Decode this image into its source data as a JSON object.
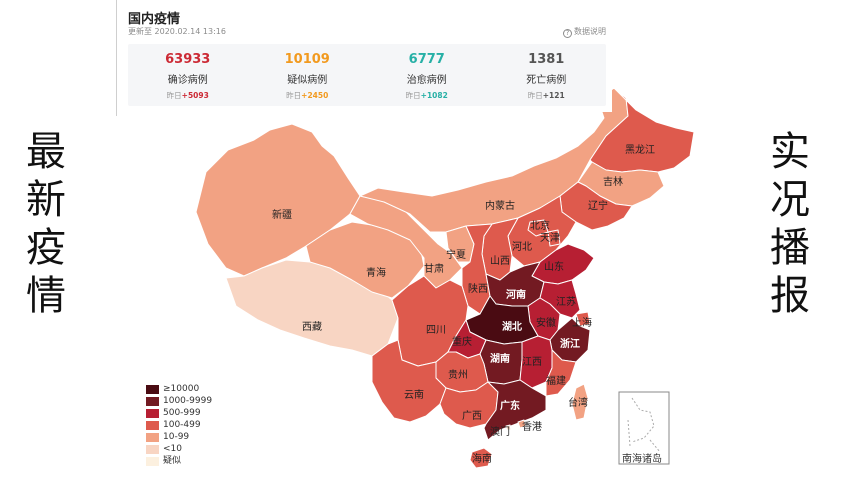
{
  "side_left": [
    "最",
    "新",
    "疫",
    "情"
  ],
  "side_right": [
    "实",
    "况",
    "播",
    "报"
  ],
  "panel": {
    "title": "国内疫情",
    "updated": "更新至 2020.02.14 13:16",
    "note": "数据说明",
    "help_icon": "question-circle-icon"
  },
  "stats": [
    {
      "value": "63933",
      "label": "确诊病例",
      "delta_prefix": "昨日",
      "delta": "+5093",
      "color": "#cc2a35"
    },
    {
      "value": "10109",
      "label": "疑似病例",
      "delta_prefix": "昨日",
      "delta": "+2450",
      "color": "#f29a1f"
    },
    {
      "value": "6777",
      "label": "治愈病例",
      "delta_prefix": "昨日",
      "delta": "+1082",
      "color": "#27b0a6"
    },
    {
      "value": "1381",
      "label": "死亡病例",
      "delta_prefix": "昨日",
      "delta": "+121",
      "color": "#555555"
    }
  ],
  "legend": [
    {
      "label": "≥10000",
      "color": "#4a0b12"
    },
    {
      "label": "1000-9999",
      "color": "#731a22"
    },
    {
      "label": "500-999",
      "color": "#b71f33"
    },
    {
      "label": "100-499",
      "color": "#de5a4d"
    },
    {
      "label": "10-99",
      "color": "#f2a283"
    },
    {
      "label": "<10",
      "color": "#f8d5c3"
    },
    {
      "label": "疑似",
      "color": "#fcf0df"
    }
  ],
  "provinces": [
    {
      "name": "黑龙江",
      "level": "100-499"
    },
    {
      "name": "吉林",
      "level": "10-99"
    },
    {
      "name": "辽宁",
      "level": "100-499"
    },
    {
      "name": "内蒙古",
      "level": "10-99"
    },
    {
      "name": "新疆",
      "level": "10-99"
    },
    {
      "name": "西藏",
      "level": "<10"
    },
    {
      "name": "青海",
      "level": "10-99"
    },
    {
      "name": "甘肃",
      "level": "10-99"
    },
    {
      "name": "宁夏",
      "level": "10-99"
    },
    {
      "name": "北京",
      "level": "100-499"
    },
    {
      "name": "天津",
      "level": "100-499"
    },
    {
      "name": "河北",
      "level": "100-499"
    },
    {
      "name": "山西",
      "level": "100-499"
    },
    {
      "name": "山东",
      "level": "500-999"
    },
    {
      "name": "陕西",
      "level": "100-499"
    },
    {
      "name": "河南",
      "level": "1000-9999"
    },
    {
      "name": "江苏",
      "level": "500-999"
    },
    {
      "name": "安徽",
      "level": "500-999"
    },
    {
      "name": "上海",
      "level": "100-499"
    },
    {
      "name": "湖北",
      "level": "≥10000"
    },
    {
      "name": "浙江",
      "level": "1000-9999"
    },
    {
      "name": "四川",
      "level": "100-499"
    },
    {
      "name": "重庆",
      "level": "500-999"
    },
    {
      "name": "湖南",
      "level": "1000-9999"
    },
    {
      "name": "江西",
      "level": "500-999"
    },
    {
      "name": "贵州",
      "level": "100-499"
    },
    {
      "name": "福建",
      "level": "100-499"
    },
    {
      "name": "云南",
      "level": "100-499"
    },
    {
      "name": "广西",
      "level": "100-499"
    },
    {
      "name": "广东",
      "level": "1000-9999"
    },
    {
      "name": "台湾",
      "level": "10-99"
    },
    {
      "name": "香港",
      "level": "10-99"
    },
    {
      "name": "澳门",
      "level": "<10"
    },
    {
      "name": "海南",
      "level": "100-499"
    }
  ],
  "inset_label": "南海诸岛"
}
